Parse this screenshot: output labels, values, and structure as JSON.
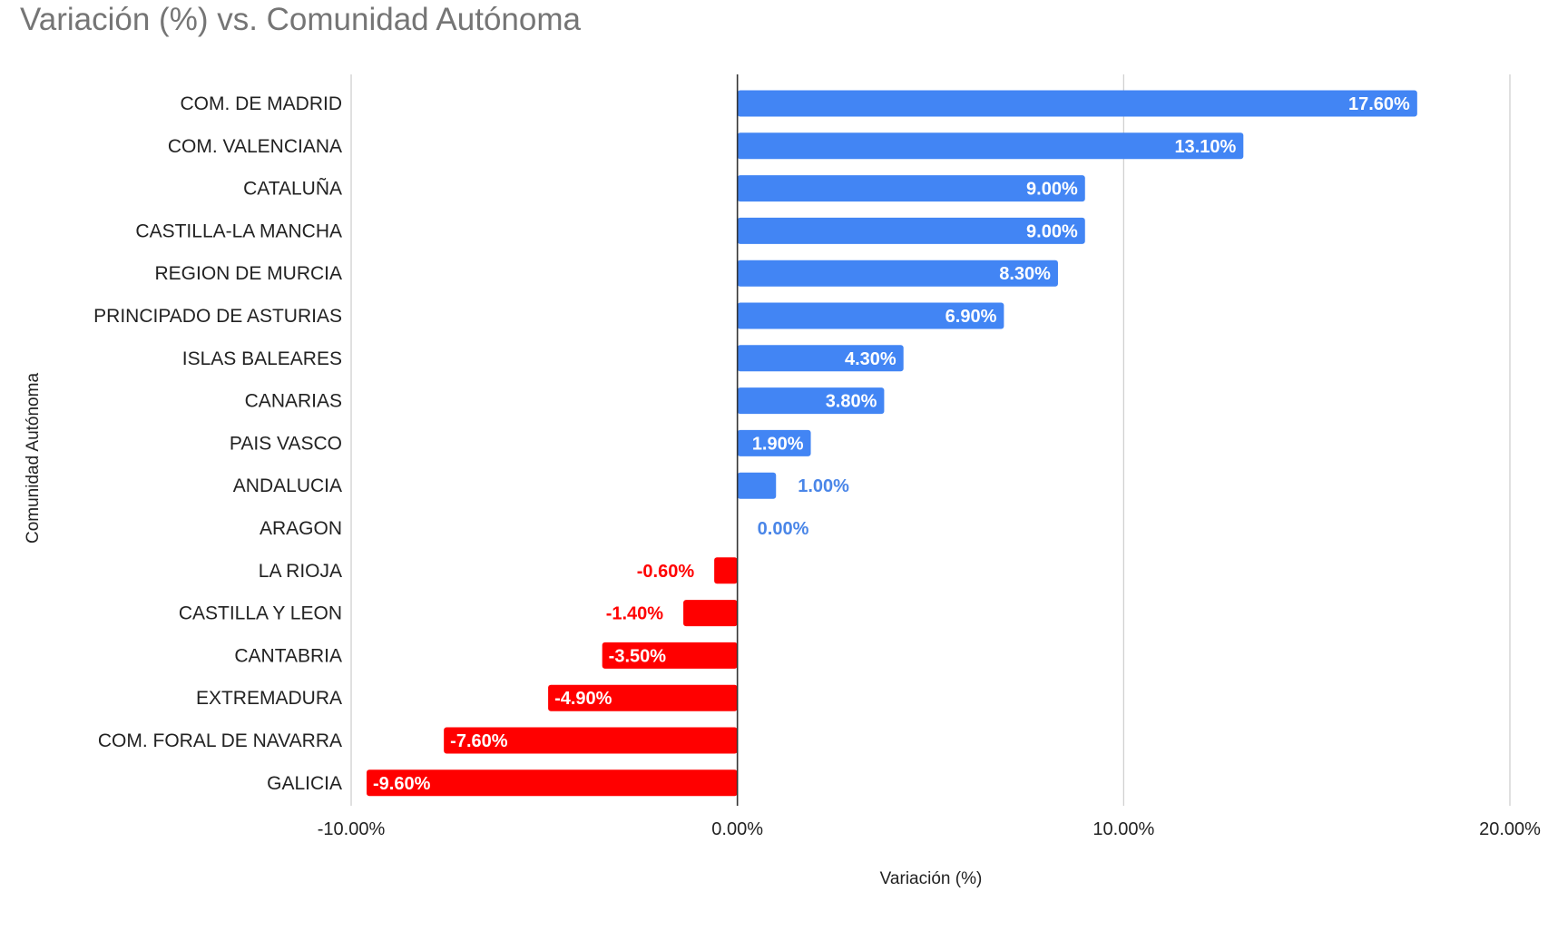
{
  "colors": {
    "positive": "#4285f4",
    "negative": "#ff0000",
    "positive_outside_label": "#4a86e8",
    "negative_outside_label": "#ff0000",
    "grid": "#cccccc",
    "zero_line": "#333333",
    "title": "#757575",
    "text": "#222222"
  },
  "chart_data": {
    "type": "bar",
    "orientation": "horizontal",
    "title": "Variación (%) vs. Comunidad Autónoma",
    "xlabel": "Variación (%)",
    "ylabel": "Comunidad Autónoma",
    "xlim": [
      -10,
      20
    ],
    "xticks": [
      -10,
      0,
      10,
      20
    ],
    "xtick_labels": [
      "-10.00%",
      "0.00%",
      "10.00%",
      "20.00%"
    ],
    "grid": true,
    "legend": "none",
    "categories": [
      "COM. DE MADRID",
      "COM. VALENCIANA",
      "CATALUÑA",
      "CASTILLA-LA MANCHA",
      "REGION DE MURCIA",
      "PRINCIPADO DE ASTURIAS",
      "ISLAS BALEARES",
      "CANARIAS",
      "PAIS VASCO",
      "ANDALUCIA",
      "ARAGON",
      "LA RIOJA",
      "CASTILLA Y LEON",
      "CANTABRIA",
      "EXTREMADURA",
      "COM. FORAL DE NAVARRA",
      "GALICIA"
    ],
    "values": [
      17.6,
      13.1,
      9.0,
      9.0,
      8.3,
      6.9,
      4.3,
      3.8,
      1.9,
      1.0,
      0.0,
      -0.6,
      -1.4,
      -3.5,
      -4.9,
      -7.6,
      -9.6
    ],
    "data_labels": [
      "17.60%",
      "13.10%",
      "9.00%",
      "9.00%",
      "8.30%",
      "6.90%",
      "4.30%",
      "3.80%",
      "1.90%",
      "1.00%",
      "0.00%",
      "-0.60%",
      "-1.40%",
      "-3.50%",
      "-4.90%",
      "-7.60%",
      "-9.60%"
    ]
  }
}
